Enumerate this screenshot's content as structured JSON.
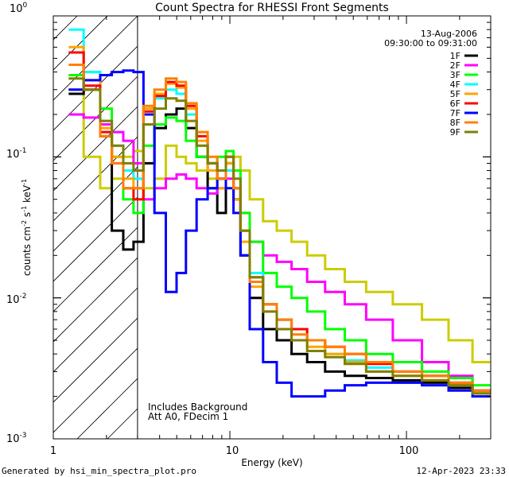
{
  "chart_data": {
    "type": "line",
    "title": "Count Spectra for RHESSI Front Segments",
    "xlabel": "Energy (keV)",
    "ylabel_parts": [
      "counts cm",
      "-2",
      " s",
      "-1",
      " keV",
      "-1"
    ],
    "x_scale": "log",
    "y_scale": "log",
    "xlim": [
      1,
      300
    ],
    "ylim": [
      0.001,
      1
    ],
    "x_tick_labels": [
      "1",
      "10",
      "100"
    ],
    "y_tick_labels": [
      {
        "base": "10",
        "exp": "0"
      },
      {
        "base": "10",
        "exp": "-1"
      },
      {
        "base": "10",
        "exp": "-2"
      },
      {
        "base": "10",
        "exp": "-3"
      }
    ],
    "legend_position": "top-right",
    "date": "13-Aug-2006",
    "time_range": "09:30:00 to 09:31:00",
    "annotations": [
      "Includes Background",
      "Att A0, FDecim 1"
    ],
    "excluded_region_below_keV": 3,
    "series": [
      {
        "name": "1F",
        "color": "#000000",
        "points": [
          [
            1.3,
            0.28
          ],
          [
            1.7,
            0.3
          ],
          [
            2.0,
            0.14
          ],
          [
            2.3,
            0.03
          ],
          [
            2.7,
            0.022
          ],
          [
            3.0,
            0.025
          ],
          [
            3.5,
            0.09
          ],
          [
            4.0,
            0.16
          ],
          [
            4.7,
            0.2
          ],
          [
            5.3,
            0.22
          ],
          [
            6.0,
            0.16
          ],
          [
            7.0,
            0.1
          ],
          [
            8.0,
            0.06
          ],
          [
            9.0,
            0.04
          ],
          [
            10.0,
            0.09
          ],
          [
            11.0,
            0.05
          ],
          [
            12.0,
            0.02
          ],
          [
            14.0,
            0.01
          ],
          [
            17.0,
            0.006
          ],
          [
            20.0,
            0.005
          ],
          [
            25.0,
            0.004
          ],
          [
            30.0,
            0.0035
          ],
          [
            40.0,
            0.003
          ],
          [
            50.0,
            0.0028
          ],
          [
            70.0,
            0.0027
          ],
          [
            100.0,
            0.0026
          ],
          [
            150.0,
            0.0025
          ],
          [
            200.0,
            0.0023
          ],
          [
            280.0,
            0.0021
          ]
        ]
      },
      {
        "name": "2F",
        "color": "#ff00ff",
        "points": [
          [
            1.3,
            0.2
          ],
          [
            1.7,
            0.19
          ],
          [
            2.0,
            0.17
          ],
          [
            2.3,
            0.15
          ],
          [
            2.7,
            0.13
          ],
          [
            3.0,
            0.09
          ],
          [
            3.5,
            0.05
          ],
          [
            4.0,
            0.06
          ],
          [
            4.7,
            0.07
          ],
          [
            5.3,
            0.075
          ],
          [
            6.0,
            0.07
          ],
          [
            7.0,
            0.06
          ],
          [
            8.0,
            0.055
          ],
          [
            9.0,
            0.06
          ],
          [
            10.0,
            0.07
          ],
          [
            11.0,
            0.06
          ],
          [
            12.0,
            0.04
          ],
          [
            14.0,
            0.025
          ],
          [
            17.0,
            0.02
          ],
          [
            20.0,
            0.018
          ],
          [
            25.0,
            0.016
          ],
          [
            30.0,
            0.013
          ],
          [
            40.0,
            0.011
          ],
          [
            50.0,
            0.009
          ],
          [
            70.0,
            0.007
          ],
          [
            100.0,
            0.005
          ],
          [
            150.0,
            0.0035
          ],
          [
            200.0,
            0.0028
          ],
          [
            280.0,
            0.0022
          ]
        ]
      },
      {
        "name": "3F",
        "color": "#00ff00",
        "points": [
          [
            1.3,
            0.38
          ],
          [
            1.7,
            0.4
          ],
          [
            2.0,
            0.22
          ],
          [
            2.3,
            0.1
          ],
          [
            2.7,
            0.05
          ],
          [
            3.0,
            0.04
          ],
          [
            3.5,
            0.12
          ],
          [
            4.0,
            0.17
          ],
          [
            4.7,
            0.19
          ],
          [
            5.3,
            0.18
          ],
          [
            6.0,
            0.13
          ],
          [
            7.0,
            0.1
          ],
          [
            8.0,
            0.09
          ],
          [
            9.0,
            0.1
          ],
          [
            10.0,
            0.11
          ],
          [
            11.0,
            0.08
          ],
          [
            12.0,
            0.04
          ],
          [
            14.0,
            0.025
          ],
          [
            17.0,
            0.015
          ],
          [
            20.0,
            0.012
          ],
          [
            25.0,
            0.01
          ],
          [
            30.0,
            0.008
          ],
          [
            40.0,
            0.006
          ],
          [
            50.0,
            0.005
          ],
          [
            70.0,
            0.004
          ],
          [
            100.0,
            0.0035
          ],
          [
            150.0,
            0.003
          ],
          [
            200.0,
            0.0027
          ],
          [
            280.0,
            0.0024
          ]
        ]
      },
      {
        "name": "4F",
        "color": "#00ffff",
        "points": [
          [
            1.3,
            0.8
          ],
          [
            1.7,
            0.4
          ],
          [
            2.0,
            0.18
          ],
          [
            2.3,
            0.12
          ],
          [
            2.7,
            0.08
          ],
          [
            3.0,
            0.07
          ],
          [
            3.5,
            0.2
          ],
          [
            4.0,
            0.26
          ],
          [
            4.7,
            0.3
          ],
          [
            5.3,
            0.28
          ],
          [
            6.0,
            0.2
          ],
          [
            7.0,
            0.12
          ],
          [
            8.0,
            0.08
          ],
          [
            9.0,
            0.07
          ],
          [
            10.0,
            0.08
          ],
          [
            11.0,
            0.06
          ],
          [
            12.0,
            0.03
          ],
          [
            14.0,
            0.015
          ],
          [
            17.0,
            0.009
          ],
          [
            20.0,
            0.007
          ],
          [
            25.0,
            0.006
          ],
          [
            30.0,
            0.005
          ],
          [
            40.0,
            0.004
          ],
          [
            50.0,
            0.0036
          ],
          [
            70.0,
            0.0032
          ],
          [
            100.0,
            0.003
          ],
          [
            150.0,
            0.0028
          ],
          [
            200.0,
            0.0025
          ],
          [
            280.0,
            0.0022
          ]
        ]
      },
      {
        "name": "5F",
        "color": "#ffa500",
        "points": [
          [
            1.3,
            0.6
          ],
          [
            1.7,
            0.35
          ],
          [
            2.0,
            0.16
          ],
          [
            2.3,
            0.1
          ],
          [
            2.7,
            0.07
          ],
          [
            3.0,
            0.06
          ],
          [
            3.5,
            0.22
          ],
          [
            4.0,
            0.28
          ],
          [
            4.7,
            0.33
          ],
          [
            5.3,
            0.31
          ],
          [
            6.0,
            0.22
          ],
          [
            7.0,
            0.13
          ],
          [
            8.0,
            0.08
          ],
          [
            9.0,
            0.06
          ],
          [
            10.0,
            0.09
          ],
          [
            11.0,
            0.05
          ],
          [
            12.0,
            0.025
          ],
          [
            14.0,
            0.012
          ],
          [
            17.0,
            0.008
          ],
          [
            20.0,
            0.006
          ],
          [
            25.0,
            0.005
          ],
          [
            30.0,
            0.0045
          ],
          [
            40.0,
            0.004
          ],
          [
            50.0,
            0.0035
          ],
          [
            70.0,
            0.003
          ],
          [
            100.0,
            0.0028
          ],
          [
            150.0,
            0.0026
          ],
          [
            200.0,
            0.0024
          ],
          [
            280.0,
            0.0021
          ]
        ]
      },
      {
        "name": "6F",
        "color": "#ff0000",
        "points": [
          [
            1.3,
            0.55
          ],
          [
            1.7,
            0.32
          ],
          [
            2.0,
            0.15
          ],
          [
            2.3,
            0.09
          ],
          [
            2.7,
            0.06
          ],
          [
            3.0,
            0.05
          ],
          [
            3.5,
            0.21
          ],
          [
            4.0,
            0.27
          ],
          [
            4.7,
            0.34
          ],
          [
            5.3,
            0.32
          ],
          [
            6.0,
            0.23
          ],
          [
            7.0,
            0.14
          ],
          [
            8.0,
            0.09
          ],
          [
            9.0,
            0.07
          ],
          [
            10.0,
            0.1
          ],
          [
            11.0,
            0.06
          ],
          [
            12.0,
            0.03
          ],
          [
            14.0,
            0.014
          ],
          [
            17.0,
            0.009
          ],
          [
            20.0,
            0.007
          ],
          [
            25.0,
            0.006
          ],
          [
            30.0,
            0.005
          ],
          [
            40.0,
            0.0045
          ],
          [
            50.0,
            0.004
          ],
          [
            70.0,
            0.0034
          ],
          [
            100.0,
            0.003
          ],
          [
            150.0,
            0.0028
          ],
          [
            200.0,
            0.0025
          ],
          [
            280.0,
            0.0022
          ]
        ]
      },
      {
        "name": "7F",
        "color": "#0000ff",
        "points": [
          [
            1.3,
            0.3
          ],
          [
            1.7,
            0.35
          ],
          [
            2.0,
            0.38
          ],
          [
            2.3,
            0.4
          ],
          [
            2.7,
            0.41
          ],
          [
            3.0,
            0.4
          ],
          [
            3.5,
            0.2
          ],
          [
            4.0,
            0.04
          ],
          [
            4.7,
            0.011
          ],
          [
            5.3,
            0.015
          ],
          [
            6.0,
            0.03
          ],
          [
            7.0,
            0.05
          ],
          [
            8.0,
            0.06
          ],
          [
            9.0,
            0.07
          ],
          [
            10.0,
            0.06
          ],
          [
            11.0,
            0.04
          ],
          [
            12.0,
            0.02
          ],
          [
            14.0,
            0.006
          ],
          [
            17.0,
            0.0035
          ],
          [
            20.0,
            0.0025
          ],
          [
            25.0,
            0.002
          ],
          [
            30.0,
            0.002
          ],
          [
            40.0,
            0.0022
          ],
          [
            50.0,
            0.0024
          ],
          [
            70.0,
            0.0025
          ],
          [
            100.0,
            0.0025
          ],
          [
            150.0,
            0.0024
          ],
          [
            200.0,
            0.0022
          ],
          [
            280.0,
            0.002
          ]
        ]
      },
      {
        "name": "8F",
        "color": "#ff8000",
        "points": [
          [
            1.3,
            0.45
          ],
          [
            1.7,
            0.3
          ],
          [
            2.0,
            0.14
          ],
          [
            2.3,
            0.09
          ],
          [
            2.7,
            0.06
          ],
          [
            3.0,
            0.06
          ],
          [
            3.5,
            0.23
          ],
          [
            4.0,
            0.3
          ],
          [
            4.7,
            0.36
          ],
          [
            5.3,
            0.34
          ],
          [
            6.0,
            0.24
          ],
          [
            7.0,
            0.15
          ],
          [
            8.0,
            0.1
          ],
          [
            9.0,
            0.07
          ],
          [
            10.0,
            0.1
          ],
          [
            11.0,
            0.06
          ],
          [
            12.0,
            0.03
          ],
          [
            14.0,
            0.013
          ],
          [
            17.0,
            0.009
          ],
          [
            20.0,
            0.007
          ],
          [
            25.0,
            0.0055
          ],
          [
            30.0,
            0.005
          ],
          [
            40.0,
            0.0045
          ],
          [
            50.0,
            0.004
          ],
          [
            70.0,
            0.0035
          ],
          [
            100.0,
            0.003
          ],
          [
            150.0,
            0.0028
          ],
          [
            200.0,
            0.0025
          ],
          [
            280.0,
            0.0022
          ]
        ]
      },
      {
        "name": "9F",
        "color": "#808000",
        "points": [
          [
            1.3,
            0.36
          ],
          [
            1.7,
            0.3
          ],
          [
            2.0,
            0.18
          ],
          [
            2.3,
            0.12
          ],
          [
            2.7,
            0.09
          ],
          [
            3.0,
            0.08
          ],
          [
            3.5,
            0.17
          ],
          [
            4.0,
            0.22
          ],
          [
            4.7,
            0.26
          ],
          [
            5.3,
            0.25
          ],
          [
            6.0,
            0.18
          ],
          [
            7.0,
            0.12
          ],
          [
            8.0,
            0.09
          ],
          [
            9.0,
            0.08
          ],
          [
            10.0,
            0.1
          ],
          [
            11.0,
            0.07
          ],
          [
            12.0,
            0.03
          ],
          [
            14.0,
            0.014
          ],
          [
            17.0,
            0.008
          ],
          [
            20.0,
            0.006
          ],
          [
            25.0,
            0.005
          ],
          [
            30.0,
            0.0042
          ],
          [
            40.0,
            0.0038
          ],
          [
            50.0,
            0.0034
          ],
          [
            70.0,
            0.003
          ],
          [
            100.0,
            0.0028
          ],
          [
            150.0,
            0.0026
          ],
          [
            200.0,
            0.0024
          ],
          [
            280.0,
            0.0021
          ]
        ]
      },
      {
        "name": "background",
        "color": "#cccc00",
        "in_legend": false,
        "points": [
          [
            1.3,
            0.3
          ],
          [
            1.7,
            0.1
          ],
          [
            2.0,
            0.06
          ],
          [
            2.3,
            0.07
          ],
          [
            2.7,
            0.1
          ],
          [
            3.0,
            0.11
          ],
          [
            3.5,
            0.06
          ],
          [
            4.0,
            0.07
          ],
          [
            4.7,
            0.12
          ],
          [
            5.3,
            0.1
          ],
          [
            6.0,
            0.09
          ],
          [
            7.0,
            0.08
          ],
          [
            8.0,
            0.07
          ],
          [
            9.0,
            0.08
          ],
          [
            10.0,
            0.09
          ],
          [
            11.0,
            0.1
          ],
          [
            12.0,
            0.08
          ],
          [
            14.0,
            0.05
          ],
          [
            17.0,
            0.035
          ],
          [
            20.0,
            0.03
          ],
          [
            25.0,
            0.025
          ],
          [
            30.0,
            0.02
          ],
          [
            40.0,
            0.016
          ],
          [
            50.0,
            0.013
          ],
          [
            70.0,
            0.011
          ],
          [
            100.0,
            0.009
          ],
          [
            150.0,
            0.007
          ],
          [
            200.0,
            0.005
          ],
          [
            280.0,
            0.0035
          ]
        ]
      }
    ]
  },
  "footer": {
    "generated_by": "Generated by hsi_min_spectra_plot.pro",
    "timestamp": "12-Apr-2023 23:33"
  }
}
